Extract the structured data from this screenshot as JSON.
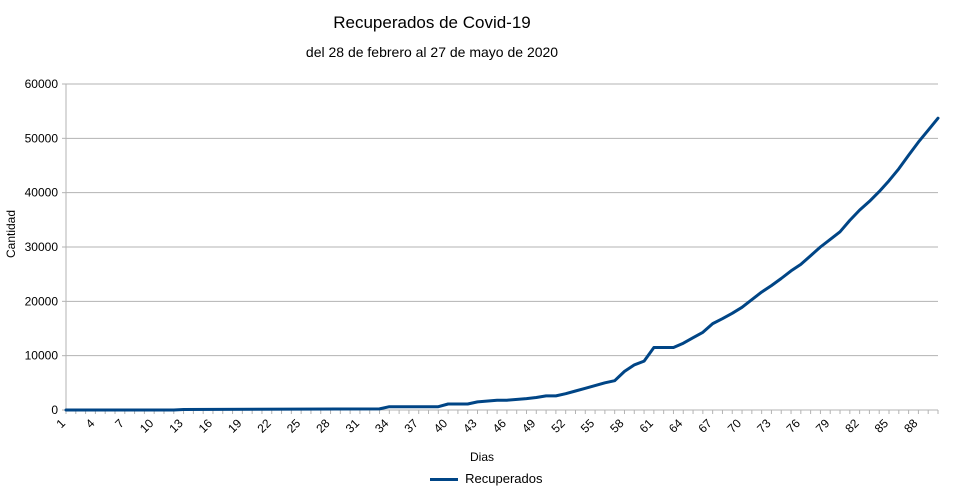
{
  "chart_data": {
    "type": "line",
    "title": "Recuperados de Covid-19",
    "subtitle": "del 28 de febrero al 27 de mayo de 2020",
    "xlabel": "Dias",
    "ylabel": "Cantidad",
    "ylim": [
      0,
      60000
    ],
    "yticks": [
      "0",
      "10000",
      "20000",
      "30000",
      "40000",
      "50000",
      "60000"
    ],
    "xticks": [
      "1",
      "4",
      "7",
      "10",
      "13",
      "16",
      "19",
      "22",
      "25",
      "28",
      "31",
      "34",
      "37",
      "40",
      "43",
      "46",
      "49",
      "52",
      "55",
      "58",
      "61",
      "64",
      "67",
      "70",
      "73",
      "76",
      "79",
      "82",
      "85",
      "88"
    ],
    "xlim": [
      1,
      90
    ],
    "grid": "horizontal",
    "legend_position": "bottom",
    "series": [
      {
        "name": "Recuperados",
        "color": "#004586",
        "x": [
          1,
          12,
          13,
          33,
          34,
          39,
          40,
          42,
          43,
          45,
          46,
          48,
          49,
          50,
          51,
          52,
          53,
          54,
          55,
          56,
          57,
          58,
          59,
          60,
          61,
          62,
          63,
          64,
          65,
          66,
          67,
          68,
          69,
          70,
          71,
          72,
          73,
          74,
          75,
          76,
          77,
          78,
          79,
          80,
          81,
          82,
          83,
          84,
          85,
          86,
          87,
          88,
          89,
          90
        ],
        "y": [
          0,
          0,
          100,
          200,
          600,
          600,
          1100,
          1100,
          1500,
          1800,
          1800,
          2100,
          2300,
          2600,
          2600,
          3000,
          3500,
          4000,
          4500,
          5000,
          5400,
          7100,
          8300,
          9000,
          11500,
          11500,
          11500,
          12300,
          13300,
          14300,
          15900,
          16800,
          17800,
          18900,
          20300,
          21700,
          22900,
          24200,
          25600,
          26800,
          28400,
          30000,
          31400,
          32800,
          34900,
          36800,
          38400,
          40200,
          42200,
          44400,
          46900,
          49300,
          51500,
          53700
        ]
      }
    ]
  }
}
